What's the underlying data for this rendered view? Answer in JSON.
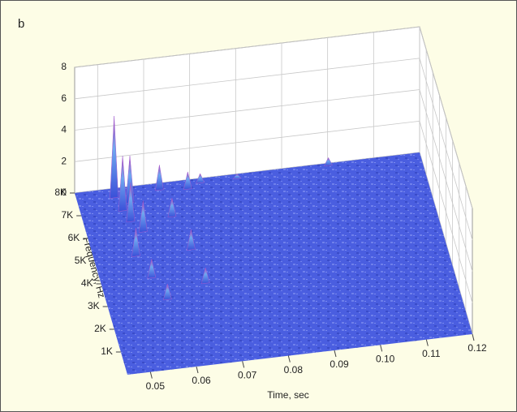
{
  "chart_data": {
    "type": "surface3d",
    "panel_label": "b",
    "xlabel": "Time, sec",
    "ylabel": "Frequency, Hz",
    "xlim": [
      0.045,
      0.12
    ],
    "ylim": [
      0,
      8000
    ],
    "zlim": [
      0,
      8
    ],
    "xticks": [
      0.05,
      0.06,
      0.07,
      0.08,
      0.09,
      {
        "value": 0.1,
        "label": "0.10"
      },
      0.11,
      0.12
    ],
    "yticks": [
      {
        "value": 1000,
        "label": "1K"
      },
      {
        "value": 2000,
        "label": "2K"
      },
      {
        "value": 3000,
        "label": "3K"
      },
      {
        "value": 4000,
        "label": "4K"
      },
      {
        "value": 5000,
        "label": "5K"
      },
      {
        "value": 6000,
        "label": "6K"
      },
      {
        "value": 7000,
        "label": "7K"
      },
      {
        "value": 8000,
        "label": "8K"
      }
    ],
    "zticks": [
      0,
      2,
      4,
      6,
      8
    ],
    "grid": true,
    "color": "#4a5ee0",
    "peak_color": "#a05cd0",
    "x": [
      0.053,
      0.054,
      0.055,
      0.056,
      0.057,
      0.054,
      0.056,
      0.058,
      0.063,
      0.064,
      0.066,
      0.067,
      0.069,
      0.072,
      0.08,
      0.1
    ],
    "y": [
      7600,
      7000,
      6500,
      7300,
      6000,
      5000,
      4000,
      3000,
      7700,
      6500,
      5000,
      3500,
      7600,
      7800,
      7800,
      7900
    ],
    "values": [
      5.2,
      3.5,
      2.5,
      3,
      2,
      1.8,
      1.2,
      1,
      1.6,
      1.2,
      1.3,
      1,
      1.1,
      0.6,
      0.3,
      0.5
    ]
  }
}
